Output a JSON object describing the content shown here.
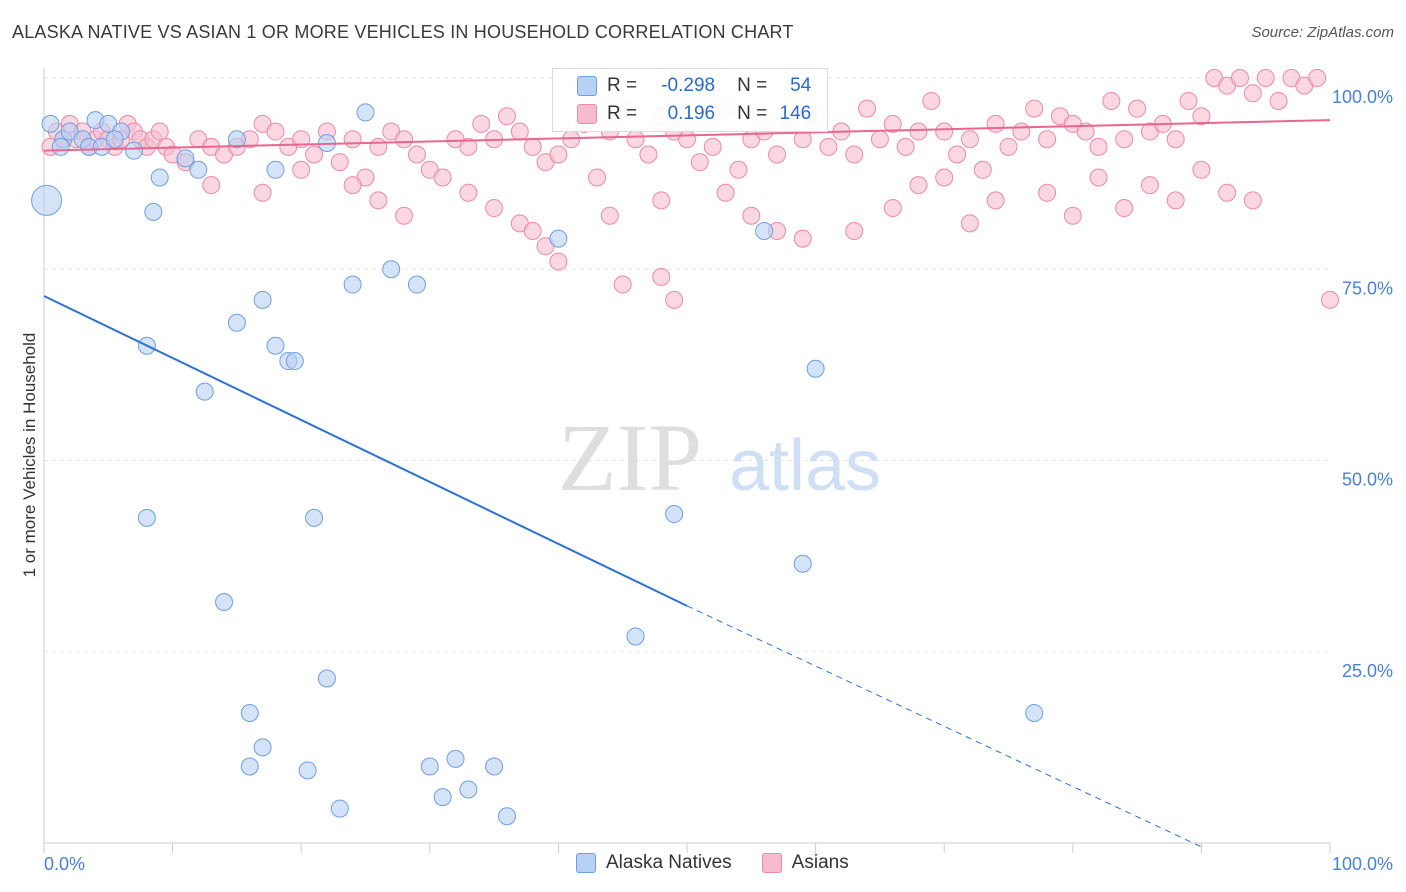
{
  "title": "ALASKA NATIVE VS ASIAN 1 OR MORE VEHICLES IN HOUSEHOLD CORRELATION CHART",
  "source": "Source: ZipAtlas.com",
  "watermark": {
    "zip": "ZIP",
    "atlas": "atlas"
  },
  "colors": {
    "blue_fill": "#b8d0f3",
    "blue_stroke": "#6f9fe0",
    "blue_line": "#2d72d2",
    "pink_fill": "#f6bccd",
    "pink_stroke": "#ec8aa8",
    "pink_line": "#e8678f",
    "tick_label": "#4a7fd4"
  },
  "stats": {
    "blue": {
      "r_label": "R =",
      "r_value": "-0.298",
      "n_label": "N =",
      "n_value": "54"
    },
    "pink": {
      "r_label": "R =",
      "r_value": "0.196",
      "n_label": "N =",
      "n_value": "146"
    }
  },
  "legend": {
    "blue": "Alaska Natives",
    "pink": "Asians"
  },
  "chart_data": {
    "type": "scatter",
    "title": "ALASKA NATIVE VS ASIAN 1 OR MORE VEHICLES IN HOUSEHOLD CORRELATION CHART",
    "xlabel": "",
    "ylabel": "1 or more Vehicles in Household",
    "xlim": [
      0,
      100
    ],
    "ylim": [
      0,
      100
    ],
    "x_tick_labels": [
      "0.0%",
      "100.0%"
    ],
    "y_tick_labels": [
      "100.0%",
      "75.0%",
      "50.0%",
      "25.0%"
    ],
    "y_ticks": [
      100,
      75,
      50,
      25
    ],
    "grid": true,
    "series": [
      {
        "name": "Alaska Natives",
        "trend": {
          "x0": 0,
          "y0": 71.5,
          "x1": 50,
          "y1": 31,
          "dash_to_x": 90,
          "dash_to_y": -0.5
        },
        "points": [
          [
            0.5,
            94
          ],
          [
            1.5,
            92
          ],
          [
            4,
            94.5
          ],
          [
            1.3,
            91
          ],
          [
            2,
            93
          ],
          [
            3,
            92
          ],
          [
            3.5,
            91
          ],
          [
            5,
            94
          ],
          [
            7,
            90.5
          ],
          [
            4.5,
            91
          ],
          [
            0.2,
            84,
            "big"
          ],
          [
            6,
            93
          ],
          [
            5.5,
            92
          ],
          [
            9,
            87
          ],
          [
            11,
            89.5
          ],
          [
            12,
            88
          ],
          [
            18,
            88
          ],
          [
            15,
            92
          ],
          [
            22,
            91.5
          ],
          [
            25,
            95.5
          ],
          [
            42,
            99.5
          ],
          [
            8.5,
            82.5
          ],
          [
            40,
            79
          ],
          [
            56,
            80
          ],
          [
            17,
            71
          ],
          [
            15,
            68
          ],
          [
            24,
            73
          ],
          [
            29,
            73
          ],
          [
            27,
            75
          ],
          [
            18,
            65
          ],
          [
            8,
            65
          ],
          [
            19,
            63
          ],
          [
            19.5,
            63
          ],
          [
            12.5,
            59
          ],
          [
            60,
            62
          ],
          [
            8,
            42.5
          ],
          [
            21,
            42.5
          ],
          [
            49,
            43
          ],
          [
            59,
            36.5
          ],
          [
            14,
            31.5
          ],
          [
            46,
            27
          ],
          [
            22,
            21.5
          ],
          [
            16,
            17
          ],
          [
            77,
            17
          ],
          [
            17,
            12.5
          ],
          [
            16,
            10
          ],
          [
            20.5,
            9.5
          ],
          [
            30,
            10
          ],
          [
            32,
            11
          ],
          [
            35,
            10
          ],
          [
            31,
            6
          ],
          [
            33,
            7
          ],
          [
            23,
            4.5
          ],
          [
            36,
            3.5
          ]
        ]
      },
      {
        "name": "Asians",
        "trend": {
          "x0": 0,
          "y0": 90.5,
          "x1": 100,
          "y1": 94.5
        },
        "points": [
          [
            0.5,
            91
          ],
          [
            1,
            93
          ],
          [
            1.5,
            92
          ],
          [
            2,
            94
          ],
          [
            2.5,
            92
          ],
          [
            3,
            93
          ],
          [
            3.5,
            91
          ],
          [
            4,
            92
          ],
          [
            4.5,
            93
          ],
          [
            5,
            92
          ],
          [
            5.5,
            91
          ],
          [
            6,
            92
          ],
          [
            6.5,
            94
          ],
          [
            7,
            93
          ],
          [
            7.5,
            92
          ],
          [
            8,
            91
          ],
          [
            8.5,
            92
          ],
          [
            9,
            93
          ],
          [
            9.5,
            91
          ],
          [
            10,
            90
          ],
          [
            11,
            89
          ],
          [
            12,
            92
          ],
          [
            13,
            91
          ],
          [
            14,
            90
          ],
          [
            15,
            91
          ],
          [
            16,
            92
          ],
          [
            17,
            94
          ],
          [
            18,
            93
          ],
          [
            19,
            91
          ],
          [
            20,
            92
          ],
          [
            21,
            90
          ],
          [
            22,
            93
          ],
          [
            23,
            89
          ],
          [
            24,
            92
          ],
          [
            25,
            87
          ],
          [
            26,
            91
          ],
          [
            27,
            93
          ],
          [
            28,
            92
          ],
          [
            29,
            90
          ],
          [
            30,
            88
          ],
          [
            31,
            87
          ],
          [
            32,
            92
          ],
          [
            33,
            91
          ],
          [
            34,
            94
          ],
          [
            35,
            92
          ],
          [
            36,
            95
          ],
          [
            37,
            93
          ],
          [
            38,
            91
          ],
          [
            39,
            89
          ],
          [
            40,
            90
          ],
          [
            41,
            92
          ],
          [
            42,
            94
          ],
          [
            43,
            87
          ],
          [
            44,
            93
          ],
          [
            45,
            96
          ],
          [
            46,
            92
          ],
          [
            47,
            90
          ],
          [
            48,
            95
          ],
          [
            49,
            93
          ],
          [
            50,
            92
          ],
          [
            51,
            89
          ],
          [
            52,
            91
          ],
          [
            53,
            96
          ],
          [
            54,
            88
          ],
          [
            55,
            92
          ],
          [
            56,
            93
          ],
          [
            57,
            90
          ],
          [
            58,
            94
          ],
          [
            59,
            92
          ],
          [
            60,
            95
          ],
          [
            61,
            91
          ],
          [
            62,
            93
          ],
          [
            63,
            90
          ],
          [
            64,
            96
          ],
          [
            65,
            92
          ],
          [
            66,
            94
          ],
          [
            67,
            91
          ],
          [
            68,
            93
          ],
          [
            69,
            97
          ],
          [
            70,
            93
          ],
          [
            71,
            90
          ],
          [
            72,
            92
          ],
          [
            73,
            88
          ],
          [
            74,
            94
          ],
          [
            75,
            91
          ],
          [
            76,
            93
          ],
          [
            77,
            96
          ],
          [
            78,
            92
          ],
          [
            79,
            95
          ],
          [
            80,
            94
          ],
          [
            81,
            93
          ],
          [
            82,
            91
          ],
          [
            83,
            97
          ],
          [
            84,
            92
          ],
          [
            85,
            96
          ],
          [
            86,
            93
          ],
          [
            87,
            94
          ],
          [
            88,
            92
          ],
          [
            89,
            97
          ],
          [
            90,
            95
          ],
          [
            91,
            100
          ],
          [
            92,
            99
          ],
          [
            93,
            100
          ],
          [
            94,
            98
          ],
          [
            95,
            100
          ],
          [
            96,
            97
          ],
          [
            97,
            100
          ],
          [
            98,
            99
          ],
          [
            99,
            100
          ],
          [
            100,
            71
          ],
          [
            26,
            84
          ],
          [
            28,
            82
          ],
          [
            33,
            85
          ],
          [
            35,
            83
          ],
          [
            37,
            81
          ],
          [
            38,
            80
          ],
          [
            39,
            78
          ],
          [
            40,
            76
          ],
          [
            44,
            82
          ],
          [
            45,
            73
          ],
          [
            48,
            84
          ],
          [
            53,
            85
          ],
          [
            55,
            82
          ],
          [
            57,
            80
          ],
          [
            59,
            79
          ],
          [
            63,
            80
          ],
          [
            66,
            83
          ],
          [
            68,
            86
          ],
          [
            70,
            87
          ],
          [
            72,
            81
          ],
          [
            74,
            84
          ],
          [
            78,
            85
          ],
          [
            80,
            82
          ],
          [
            82,
            87
          ],
          [
            84,
            83
          ],
          [
            86,
            86
          ],
          [
            88,
            84
          ],
          [
            90,
            88
          ],
          [
            92,
            85
          ],
          [
            94,
            84
          ],
          [
            48,
            74
          ],
          [
            49,
            71
          ],
          [
            13,
            86
          ],
          [
            17,
            85
          ],
          [
            20,
            88
          ],
          [
            24,
            86
          ]
        ]
      }
    ]
  }
}
